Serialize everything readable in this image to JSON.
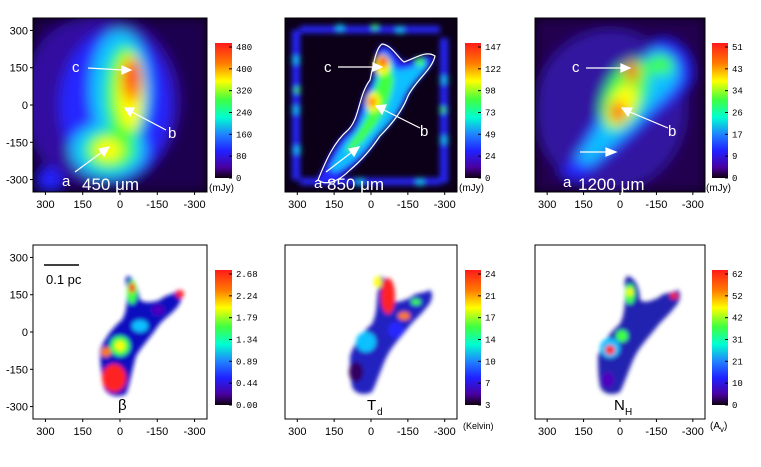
{
  "panels": [
    {
      "id": "p450",
      "kind": "map",
      "wavelength": "450 μm",
      "cbar_unit": "(mJy)",
      "cbar_ticks": [
        "480",
        "400",
        "320",
        "240",
        "160",
        "80",
        "0"
      ],
      "labels": [
        "c",
        "b",
        "a"
      ]
    },
    {
      "id": "p850",
      "kind": "map",
      "wavelength": "850 μm",
      "cbar_unit": "(mJy)",
      "cbar_ticks": [
        "147",
        "122",
        "98",
        "73",
        "49",
        "24",
        "0"
      ],
      "labels": [
        "c",
        "b",
        "a"
      ]
    },
    {
      "id": "p1200",
      "kind": "map",
      "wavelength": "1200 μm",
      "cbar_unit": "(mJy)",
      "cbar_ticks": [
        "51",
        "43",
        "34",
        "26",
        "17",
        "9",
        "0"
      ],
      "labels": [
        "c",
        "b",
        "a"
      ]
    },
    {
      "id": "beta",
      "kind": "param",
      "symbol": "β",
      "scalebar": "0.1 pc",
      "cbar_unit": "",
      "cbar_ticks": [
        "2.68",
        "2.24",
        "1.79",
        "1.34",
        "0.89",
        "0.44",
        "0.00"
      ]
    },
    {
      "id": "td",
      "kind": "param",
      "symbol": "T",
      "symbol_sub": "d",
      "cbar_unit": "(Kelvin)",
      "cbar_ticks": [
        "24",
        "21",
        "17",
        "14",
        "10",
        "7",
        "3"
      ]
    },
    {
      "id": "nh",
      "kind": "param",
      "symbol": "N",
      "symbol_sub": "H",
      "cbar_unit": "(A",
      "cbar_unit_sub": "v",
      "cbar_unit_end": ")",
      "cbar_ticks": [
        "62",
        "52",
        "42",
        "31",
        "21",
        "10",
        "0"
      ]
    }
  ],
  "axes": {
    "x_ticks": [
      "300",
      "150",
      "0",
      "-150",
      "-300"
    ],
    "y_ticks": [
      "300",
      "150",
      "0",
      "-150",
      "-300"
    ]
  },
  "colors": {
    "colormap": [
      "#ff2020",
      "#ff8000",
      "#ffff00",
      "#40ff40",
      "#00ffff",
      "#2080ff",
      "#2020ff",
      "#5000c0",
      "#300050",
      "#000000"
    ]
  }
}
